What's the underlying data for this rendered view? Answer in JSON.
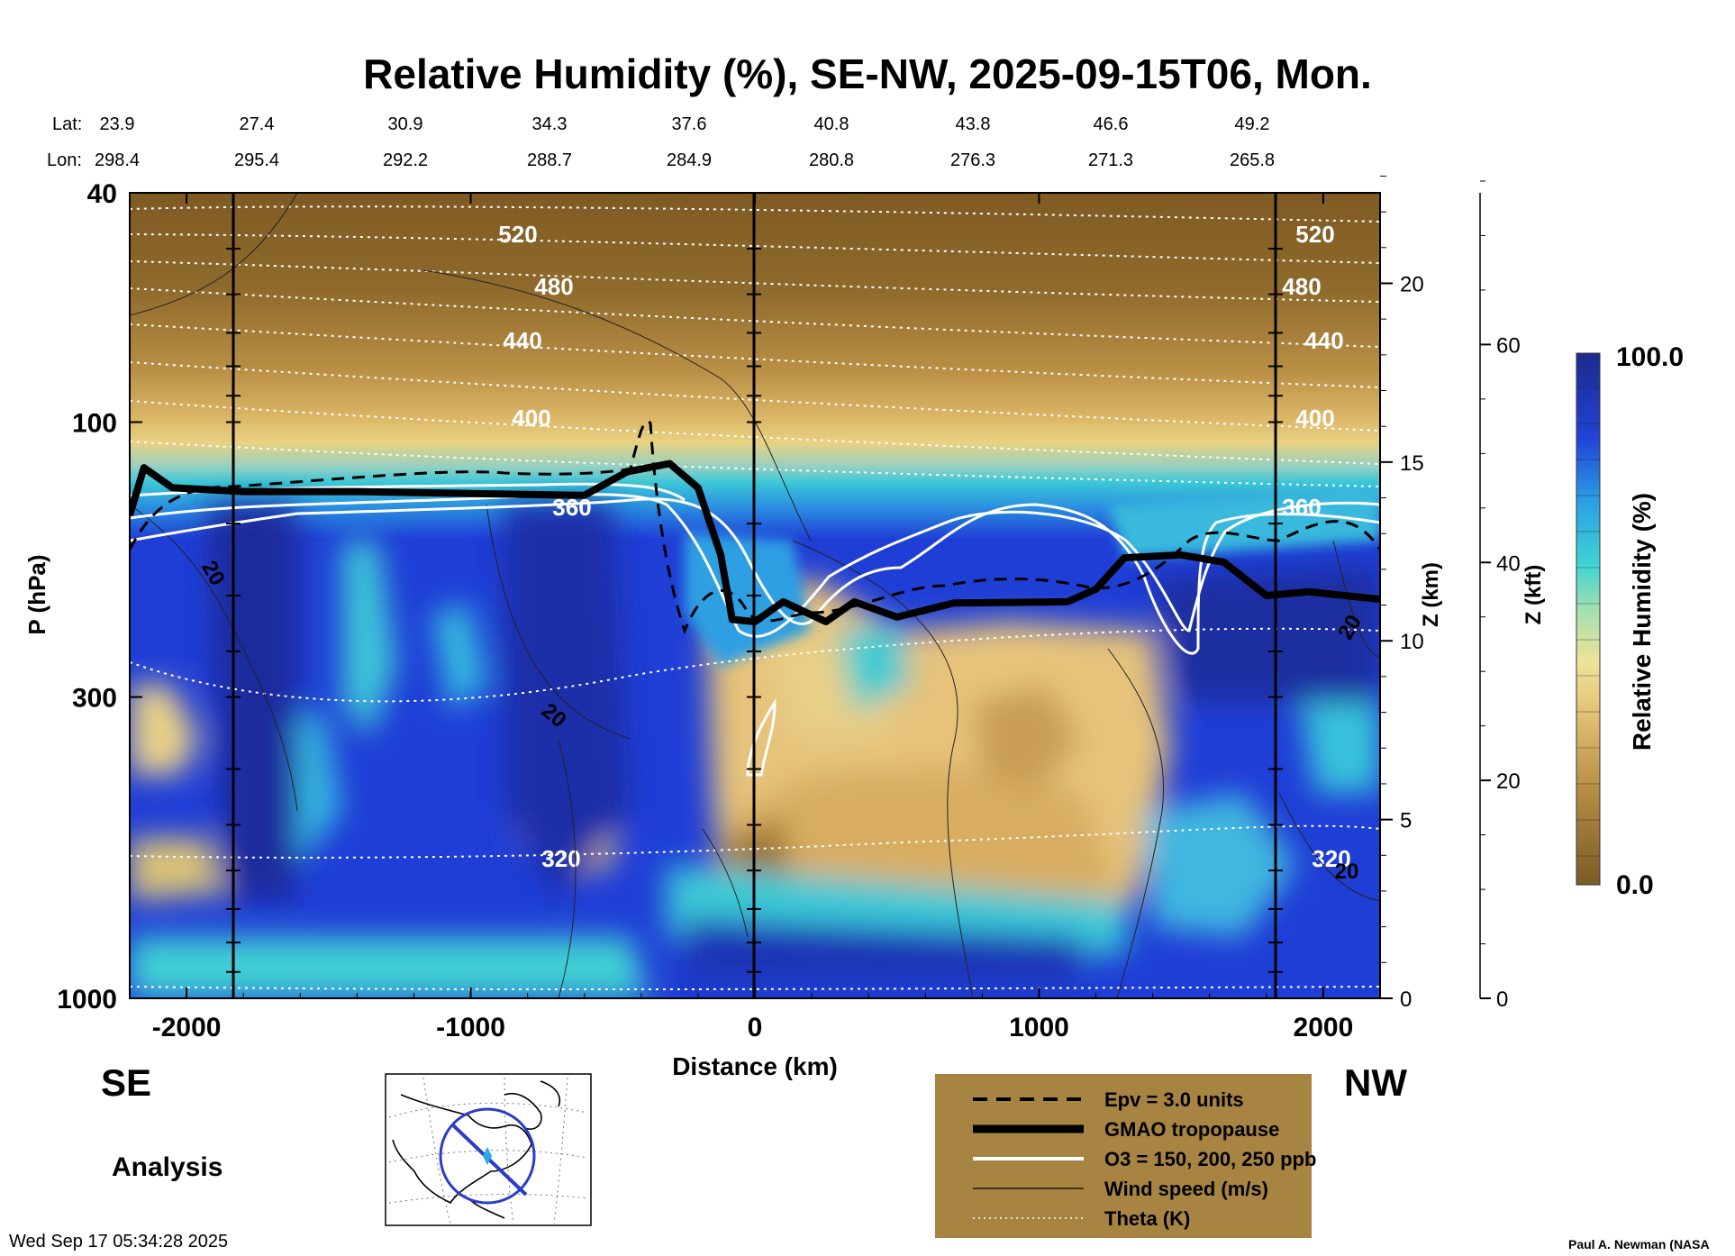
{
  "title": "Relative Humidity (%), SE-NW, 2025-09-15T06, Mon.",
  "lat_label": "Lat:",
  "lon_label": "Lon:",
  "lat_values": [
    "23.9",
    "27.4",
    "30.9",
    "34.3",
    "37.6",
    "40.8",
    "43.8",
    "46.6",
    "49.2"
  ],
  "lon_values": [
    "298.4",
    "295.4",
    "292.2",
    "288.7",
    "284.9",
    "280.8",
    "276.3",
    "271.3",
    "265.8"
  ],
  "direction_left": "SE",
  "direction_right": "NW",
  "analysis_label": "Analysis",
  "timestamp": "Wed Sep 17 05:34:28 2025",
  "credit": "Paul A. Newman (NASA",
  "colors": {
    "moist_dark": "#1b2a8c",
    "moist": "#1f3ed6",
    "mid": "#35c9cf",
    "dry": "#e8c77a",
    "very_dry": "#8a6428",
    "legend_bg": "#a88442"
  },
  "legend": {
    "items": [
      {
        "style": "dashed",
        "label": "Epv = 3.0 units"
      },
      {
        "style": "thick",
        "label": "GMAO tropopause"
      },
      {
        "style": "white",
        "label": "O3 = 150, 200, 250 ppb"
      },
      {
        "style": "thin",
        "label": "Wind speed (m/s)"
      },
      {
        "style": "dotted",
        "label": "Theta (K)"
      }
    ]
  },
  "colorbar": {
    "max_label": "100.0",
    "min_label": "0.0",
    "title": "Relative Humidity (%)"
  },
  "chart_data": {
    "type": "heatmap",
    "title": "Relative Humidity (%), SE-NW, 2025-09-15T06, Mon.",
    "xlabel": "Distance (km)",
    "ylabel": "P (hPa)",
    "xlim": [
      -2200,
      2200
    ],
    "ylim_hpa": [
      1000,
      40
    ],
    "x_ticks": [
      -2000,
      -1000,
      0,
      1000,
      2000
    ],
    "x_tick_labels": [
      "-2000",
      "-1000",
      "0",
      "1000",
      "2000"
    ],
    "y_ticks": [
      40,
      100,
      300,
      1000
    ],
    "y_tick_labels": [
      "40",
      "100",
      "300",
      "1000"
    ],
    "z_km_ticks": [
      0,
      5,
      10,
      15,
      20
    ],
    "z_km_labels": [
      "0",
      "5",
      "10",
      "15",
      "20"
    ],
    "z_km_label": "Z (km)",
    "z_kft_ticks": [
      0,
      20,
      40,
      60
    ],
    "z_kft_labels": [
      "0",
      "20",
      "40",
      "60"
    ],
    "z_kft_label": "Z (kft)",
    "colorbar_range": [
      0,
      100
    ],
    "theta_contours": [
      {
        "label": "520",
        "p": 47
      },
      {
        "label": "480",
        "p": 58
      },
      {
        "label": "440",
        "p": 72
      },
      {
        "label": "400",
        "p": 98
      },
      {
        "label": "360",
        "p": 140
      },
      {
        "label": "320",
        "p": 570
      }
    ],
    "wind_labels": [
      "20",
      "20",
      "20",
      "20"
    ],
    "tropopause_hpa": [
      {
        "x": -2200,
        "p": 145
      },
      {
        "x": -2150,
        "p": 120
      },
      {
        "x": -2050,
        "p": 130
      },
      {
        "x": -1800,
        "p": 132
      },
      {
        "x": -1400,
        "p": 132
      },
      {
        "x": -1000,
        "p": 133
      },
      {
        "x": -600,
        "p": 134
      },
      {
        "x": -450,
        "p": 122
      },
      {
        "x": -300,
        "p": 118
      },
      {
        "x": -200,
        "p": 130
      },
      {
        "x": -120,
        "p": 170
      },
      {
        "x": -80,
        "p": 220
      },
      {
        "x": 0,
        "p": 222
      },
      {
        "x": 100,
        "p": 205
      },
      {
        "x": 250,
        "p": 222
      },
      {
        "x": 350,
        "p": 205
      },
      {
        "x": 500,
        "p": 218
      },
      {
        "x": 700,
        "p": 206
      },
      {
        "x": 1100,
        "p": 205
      },
      {
        "x": 1200,
        "p": 195
      },
      {
        "x": 1300,
        "p": 172
      },
      {
        "x": 1500,
        "p": 170
      },
      {
        "x": 1650,
        "p": 175
      },
      {
        "x": 1800,
        "p": 200
      },
      {
        "x": 1950,
        "p": 197
      },
      {
        "x": 2200,
        "p": 203
      }
    ]
  }
}
